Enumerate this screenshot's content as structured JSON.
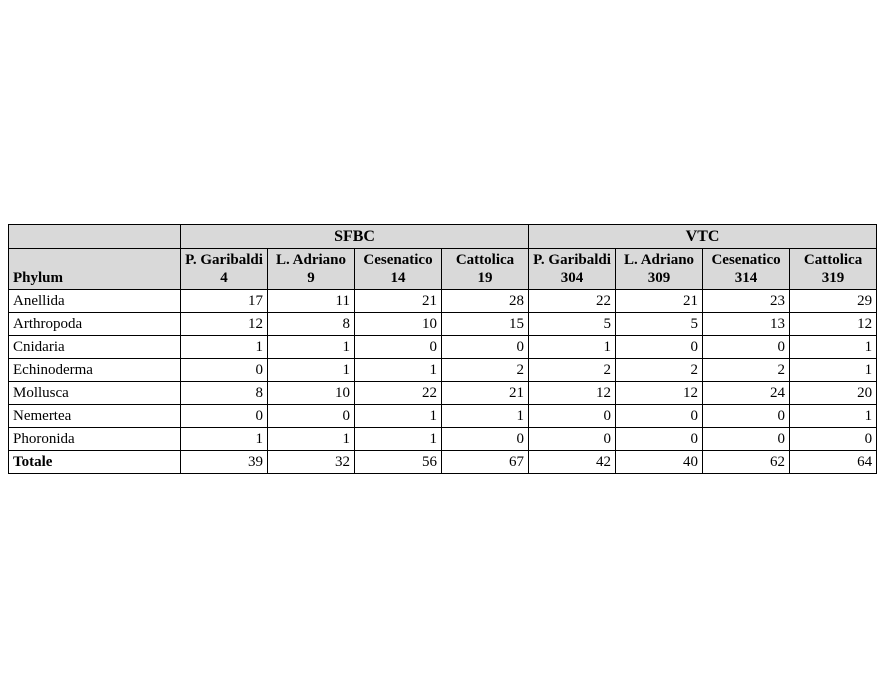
{
  "table": {
    "type": "table",
    "background_color": "#ffffff",
    "border_color": "#000000",
    "header_bg": "#d9d9d9",
    "font_family": "Times New Roman",
    "phylum_header": "Phylum",
    "groups": [
      {
        "label": "SFBC",
        "span": 4
      },
      {
        "label": "VTC",
        "span": 4
      }
    ],
    "columns": [
      {
        "line1": "P. Garibaldi",
        "line2": "4"
      },
      {
        "line1": "L. Adriano",
        "line2": "9"
      },
      {
        "line1": "Cesenatico",
        "line2": "14"
      },
      {
        "line1": "Cattolica",
        "line2": "19"
      },
      {
        "line1": "P. Garibaldi",
        "line2": "304"
      },
      {
        "line1": "L. Adriano",
        "line2": "309"
      },
      {
        "line1": "Cesenatico",
        "line2": "314"
      },
      {
        "line1": "Cattolica",
        "line2": "319"
      }
    ],
    "rows": [
      {
        "phylum": "Anellida",
        "values": [
          17,
          11,
          21,
          28,
          22,
          21,
          23,
          29
        ]
      },
      {
        "phylum": "Arthropoda",
        "values": [
          12,
          8,
          10,
          15,
          5,
          5,
          13,
          12
        ]
      },
      {
        "phylum": "Cnidaria",
        "values": [
          1,
          1,
          0,
          0,
          1,
          0,
          0,
          1
        ]
      },
      {
        "phylum": "Echinoderma",
        "values": [
          0,
          1,
          1,
          2,
          2,
          2,
          2,
          1
        ]
      },
      {
        "phylum": "Mollusca",
        "values": [
          8,
          10,
          22,
          21,
          12,
          12,
          24,
          20
        ]
      },
      {
        "phylum": "Nemertea",
        "values": [
          0,
          0,
          1,
          1,
          0,
          0,
          0,
          1
        ]
      },
      {
        "phylum": "Phoronida",
        "values": [
          1,
          1,
          1,
          0,
          0,
          0,
          0,
          0
        ]
      }
    ],
    "total": {
      "label": "Totale",
      "values": [
        39,
        32,
        56,
        67,
        42,
        40,
        62,
        64
      ]
    }
  }
}
